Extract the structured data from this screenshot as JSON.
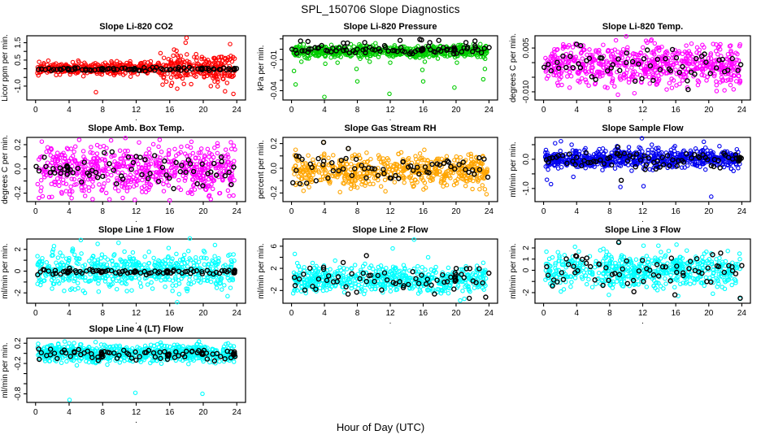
{
  "title": "SPL_150706  Slope Diagnostics",
  "xlabel": "Hour of Day (UTC)",
  "dot_label": ".",
  "x_ticks": [
    0,
    4,
    8,
    12,
    16,
    20,
    24
  ],
  "colors": {
    "axis": "#000000",
    "overlay": "#000000",
    "red": "#FF0000",
    "green": "#00CC00",
    "magenta": "#FF00FF",
    "orange": "#FFA500",
    "blue": "#0000EE",
    "cyan": "#00FFFF"
  },
  "chart_data": [
    {
      "type": "scatter",
      "title": "Slope Li-820 CO2",
      "ylabel": "Licor ppm per min.",
      "point_color": "#FF0000",
      "x_range": [
        0,
        24
      ],
      "y_range": [
        -1.8,
        1.9
      ],
      "y_ticks": [
        {
          "v": -1.0,
          "label": "-1.0"
        },
        {
          "v": -0.5,
          "label": ""
        },
        {
          "v": 0.0,
          "label": ""
        },
        {
          "v": 0.5,
          "label": "0.5"
        },
        {
          "v": 1.0,
          "label": ""
        },
        {
          "v": 1.5,
          "label": "1.5"
        }
      ],
      "gen": {
        "n": 620,
        "mean": 0.03,
        "sd": 0.17,
        "sd2": 2.4,
        "sd2_from": 15,
        "seed": 11
      },
      "outliers": [
        [
          7.2,
          -1.35
        ],
        [
          16.9,
          -1.15
        ],
        [
          18.0,
          1.78
        ],
        [
          17.9,
          1.5
        ],
        [
          20.9,
          -1.0
        ],
        [
          22.6,
          -1.3
        ],
        [
          23.2,
          1.42
        ],
        [
          23.6,
          -1.45
        ],
        [
          14.9,
          0.9
        ]
      ],
      "overlay": {
        "n": 72,
        "mean": -0.02,
        "sd": 0.05,
        "seed": 111,
        "outliers": [],
        "clusters": [
          3.9,
          7.9,
          11.8,
          19.8,
          23.7
        ]
      }
    },
    {
      "type": "scatter",
      "title": "Slope Li-820 Pressure",
      "ylabel": "kPa per min.",
      "point_color": "#00CC00",
      "x_range": [
        0,
        24
      ],
      "y_range": [
        -0.049,
        0.013
      ],
      "y_ticks": [
        {
          "v": -0.04,
          "label": "-0.04"
        },
        {
          "v": -0.03,
          "label": ""
        },
        {
          "v": -0.02,
          "label": ""
        },
        {
          "v": -0.01,
          "label": "-0.01"
        },
        {
          "v": 0.0,
          "label": ""
        },
        {
          "v": 0.01,
          "label": ""
        }
      ],
      "gen": {
        "n": 600,
        "mean": -0.002,
        "sd": 0.0028,
        "seed": 22
      },
      "outliers": [
        [
          0.3,
          -0.021
        ],
        [
          0.5,
          -0.034
        ],
        [
          1.2,
          -0.012
        ],
        [
          4.0,
          -0.046
        ],
        [
          4.1,
          -0.014
        ],
        [
          5.6,
          -0.013
        ],
        [
          7.9,
          -0.019
        ],
        [
          8.0,
          -0.031
        ],
        [
          9.5,
          -0.012
        ],
        [
          11.9,
          -0.043
        ],
        [
          12.0,
          -0.013
        ],
        [
          15.9,
          -0.02
        ],
        [
          16.0,
          -0.031
        ],
        [
          16.2,
          -0.012
        ],
        [
          19.8,
          -0.037
        ],
        [
          20.1,
          -0.013
        ],
        [
          23.3,
          -0.029
        ],
        [
          23.5,
          -0.019
        ]
      ],
      "overlay": {
        "n": 72,
        "mean": -0.0005,
        "sd": 0.0018,
        "seed": 222,
        "outliers": [
          [
            1.1,
            0.008
          ],
          [
            2.0,
            0.0075
          ],
          [
            6.3,
            0.006
          ],
          [
            6.8,
            0.006
          ],
          [
            8.9,
            0.0065
          ],
          [
            13.2,
            0.0085
          ],
          [
            15.6,
            0.0095
          ],
          [
            15.8,
            0.009
          ],
          [
            16.8,
            0.0065
          ],
          [
            17.9,
            0.0085
          ],
          [
            21.2,
            0.0065
          ],
          [
            22.3,
            0.008
          ]
        ],
        "clusters": [
          15.9,
          19.8
        ]
      }
    },
    {
      "type": "scatter",
      "title": "Slope Li-820 Temp.",
      "ylabel": "degrees C per min.",
      "point_color": "#FF00FF",
      "x_range": [
        0,
        24
      ],
      "y_range": [
        -0.0128,
        0.0092
      ],
      "y_ticks": [
        {
          "v": -0.01,
          "label": "-0.010"
        },
        {
          "v": -0.005,
          "label": ""
        },
        {
          "v": 0.0,
          "label": ""
        },
        {
          "v": 0.005,
          "label": "0.005"
        }
      ],
      "gen": {
        "n": 620,
        "mean": -0.0008,
        "sd": 0.0033,
        "seed": 33
      },
      "outliers": [
        [
          10.0,
          0.009
        ],
        [
          12.4,
          0.0075
        ],
        [
          13.0,
          0.0075
        ],
        [
          3.9,
          0.0062
        ],
        [
          4.4,
          0.006
        ],
        [
          20.9,
          0.0062
        ],
        [
          9.0,
          -0.011
        ],
        [
          11.0,
          -0.0105
        ],
        [
          14.9,
          -0.0092
        ],
        [
          21.9,
          -0.0095
        ],
        [
          17.4,
          -0.0085
        ]
      ],
      "overlay": {
        "n": 55,
        "mean": -0.0008,
        "sd": 0.0028,
        "seed": 333,
        "outliers": [
          [
            4.0,
            0.0063
          ],
          [
            4.5,
            0.0058
          ],
          [
            15.6,
            0.0045
          ],
          [
            17.5,
            -0.0092
          ],
          [
            11.9,
            -0.0055
          ]
        ],
        "clusters": []
      }
    },
    {
      "type": "scatter",
      "title": "Slope Amb. Box Temp.",
      "ylabel": "degrees C per min.",
      "point_color": "#FF00FF",
      "x_range": [
        0,
        24
      ],
      "y_range": [
        -0.27,
        0.26
      ],
      "y_ticks": [
        {
          "v": -0.2,
          "label": "-0.2"
        },
        {
          "v": -0.1,
          "label": ""
        },
        {
          "v": 0.0,
          "label": "0.0"
        },
        {
          "v": 0.1,
          "label": ""
        },
        {
          "v": 0.2,
          "label": "0.2"
        }
      ],
      "gen": {
        "n": 620,
        "mean": 0,
        "sd": 0.095,
        "seed": 44
      },
      "outliers": [
        [
          5.2,
          0.24
        ],
        [
          9.0,
          0.235
        ],
        [
          14.8,
          0.24
        ],
        [
          23.3,
          0.22
        ],
        [
          0.4,
          -0.24
        ],
        [
          6.8,
          -0.25
        ],
        [
          10.4,
          -0.24
        ],
        [
          16.0,
          -0.26
        ],
        [
          20.9,
          -0.25
        ],
        [
          23.6,
          -0.22
        ]
      ],
      "overlay": {
        "n": 65,
        "mean": -0.01,
        "sd": 0.07,
        "seed": 444,
        "outliers": [],
        "clusters": [
          3.8
        ]
      }
    },
    {
      "type": "scatter",
      "title": "Slope Gas Stream RH",
      "ylabel": "percent per min.",
      "point_color": "#FFA500",
      "x_range": [
        0,
        24
      ],
      "y_range": [
        -0.27,
        0.25
      ],
      "y_ticks": [
        {
          "v": -0.2,
          "label": "-0.2"
        },
        {
          "v": -0.1,
          "label": ""
        },
        {
          "v": 0.0,
          "label": "0.0"
        },
        {
          "v": 0.1,
          "label": ""
        },
        {
          "v": 0.2,
          "label": "0.2"
        }
      ],
      "gen": {
        "n": 560,
        "mean": -0.02,
        "sd": 0.065,
        "seed": 55
      },
      "outliers": [
        [
          3.9,
          0.21
        ],
        [
          6.9,
          0.16
        ],
        [
          23.7,
          -0.21
        ],
        [
          23.5,
          -0.17
        ],
        [
          0.5,
          0.15
        ]
      ],
      "overlay": {
        "n": 62,
        "mean": -0.01,
        "sd": 0.06,
        "seed": 555,
        "outliers": [
          [
            3.9,
            0.21
          ],
          [
            6.9,
            0.16
          ],
          [
            0.6,
            0.1
          ],
          [
            0.9,
            0.095
          ]
        ],
        "clusters": []
      }
    },
    {
      "type": "scatter",
      "title": "Slope Sample Flow",
      "ylabel": "ml/min per min.",
      "point_color": "#0000EE",
      "x_range": [
        0,
        24
      ],
      "y_range": [
        -1.45,
        0.75
      ],
      "y_ticks": [
        {
          "v": -1.0,
          "label": "-1.0"
        },
        {
          "v": -0.5,
          "label": ""
        },
        {
          "v": 0.0,
          "label": "0.0"
        },
        {
          "v": 0.5,
          "label": ""
        }
      ],
      "gen": {
        "n": 650,
        "mean": 0.02,
        "sd": 0.16,
        "seed": 66
      },
      "outliers": [
        [
          0.4,
          -0.7
        ],
        [
          0.9,
          -0.85
        ],
        [
          1.4,
          0.55
        ],
        [
          2.1,
          0.62
        ],
        [
          3.4,
          0.5
        ],
        [
          3.6,
          -0.6
        ],
        [
          8.9,
          0.45
        ],
        [
          9.3,
          -0.95
        ],
        [
          11.9,
          0.72
        ],
        [
          12.1,
          -0.92
        ],
        [
          13.1,
          0.5
        ],
        [
          15.9,
          0.45
        ],
        [
          19.4,
          0.6
        ],
        [
          20.3,
          -1.28
        ],
        [
          23.0,
          -0.4
        ]
      ],
      "overlay": {
        "n": 68,
        "mean": -0.02,
        "sd": 0.12,
        "seed": 666,
        "outliers": [
          [
            9.0,
            0.42
          ],
          [
            9.4,
            -0.72
          ],
          [
            12.3,
            -0.35
          ],
          [
            13.6,
            -0.33
          ],
          [
            20.6,
            -0.25
          ]
        ],
        "clusters": [
          23.7
        ]
      }
    },
    {
      "type": "scatter",
      "title": "Slope Line 1 Flow",
      "ylabel": "ml/min per min.",
      "point_color": "#00FFFF",
      "x_range": [
        0,
        24
      ],
      "y_range": [
        -2.95,
        2.95
      ],
      "y_ticks": [
        {
          "v": -2,
          "label": "-2"
        },
        {
          "v": -1,
          "label": ""
        },
        {
          "v": 0,
          "label": "0"
        },
        {
          "v": 1,
          "label": ""
        },
        {
          "v": 2,
          "label": "2"
        }
      ],
      "gen": {
        "n": 560,
        "mean": 0,
        "sd": 0.85,
        "seed": 77
      },
      "outliers": [
        [
          5.4,
          2.85
        ],
        [
          7.4,
          2.5
        ],
        [
          9.9,
          2.6
        ],
        [
          18.4,
          3.0
        ],
        [
          16.9,
          -2.85
        ],
        [
          22.9,
          -2.3
        ],
        [
          21.4,
          2.4
        ],
        [
          2.2,
          2.3
        ]
      ],
      "overlay": {
        "n": 70,
        "mean": -0.05,
        "sd": 0.12,
        "seed": 777,
        "outliers": [],
        "clusters": [
          3.9,
          7.9,
          11.8,
          15.7,
          23.7
        ]
      }
    },
    {
      "type": "scatter",
      "title": "Slope Line 2 Flow",
      "ylabel": "ml/min per min.",
      "point_color": "#00FFFF",
      "x_range": [
        0,
        24
      ],
      "y_range": [
        -4.3,
        7.3
      ],
      "y_ticks": [
        {
          "v": -2,
          "label": "-2"
        },
        {
          "v": 0,
          "label": ""
        },
        {
          "v": 2,
          "label": "2"
        },
        {
          "v": 4,
          "label": ""
        },
        {
          "v": 6,
          "label": "6"
        }
      ],
      "gen": {
        "n": 560,
        "mean": 0,
        "sd": 1.15,
        "seed": 88
      },
      "outliers": [
        [
          0.4,
          4.6
        ],
        [
          12.3,
          5.6
        ],
        [
          14.9,
          7.2
        ],
        [
          16.6,
          4.0
        ],
        [
          21.0,
          -3.5
        ],
        [
          20.5,
          -3.8
        ],
        [
          5.3,
          3.4
        ],
        [
          23.3,
          3.0
        ]
      ],
      "overlay": {
        "n": 60,
        "mean": 0.2,
        "sd": 1.2,
        "seed": 888,
        "outliers": [
          [
            9.1,
            4.3
          ],
          [
            3.9,
            2.2
          ],
          [
            23.6,
            -3.2
          ],
          [
            21.6,
            -3.4
          ],
          [
            19.9,
            0.4
          ]
        ],
        "clusters": [
          19.9
        ]
      }
    },
    {
      "type": "scatter",
      "title": "Slope Line 3 Flow",
      "ylabel": "ml/min per min.",
      "point_color": "#00FFFF",
      "x_range": [
        0,
        24
      ],
      "y_range": [
        -2.95,
        2.8
      ],
      "y_ticks": [
        {
          "v": -2,
          "label": "-2"
        },
        {
          "v": -1,
          "label": ""
        },
        {
          "v": 0,
          "label": "0"
        },
        {
          "v": 1,
          "label": "1"
        },
        {
          "v": 2,
          "label": "2"
        }
      ],
      "gen": {
        "n": 560,
        "mean": 0,
        "sd": 0.75,
        "seed": 99
      },
      "outliers": [
        [
          9.1,
          2.55
        ],
        [
          3.8,
          2.1
        ],
        [
          12.1,
          2.2
        ],
        [
          16.1,
          2.3
        ],
        [
          13.9,
          2.2
        ],
        [
          23.8,
          -2.55
        ],
        [
          7.9,
          -2.2
        ],
        [
          16.3,
          -2.3
        ],
        [
          20.5,
          -2.1
        ],
        [
          2.1,
          -1.9
        ]
      ],
      "overlay": {
        "n": 64,
        "mean": 0,
        "sd": 0.75,
        "seed": 999,
        "outliers": [
          [
            9.1,
            2.5
          ],
          [
            3.9,
            1.3
          ],
          [
            4.0,
            1.25
          ],
          [
            23.8,
            -2.5
          ],
          [
            15.9,
            -2.2
          ],
          [
            19.9,
            0.2
          ]
        ],
        "clusters": []
      }
    },
    {
      "type": "scatter",
      "title": "Slope Line 4 (LT) Flow",
      "ylabel": "ml/min per min.",
      "point_color": "#00FFFF",
      "x_range": [
        0,
        24
      ],
      "y_range": [
        -0.97,
        0.3
      ],
      "y_ticks": [
        {
          "v": 0.2,
          "label": "0.2"
        },
        {
          "v": 0.0,
          "label": ""
        },
        {
          "v": -0.2,
          "label": "-0.2"
        },
        {
          "v": -0.4,
          "label": ""
        },
        {
          "v": -0.6,
          "label": ""
        },
        {
          "v": -0.8,
          "label": "-0.8"
        }
      ],
      "gen": {
        "n": 620,
        "mean": 0,
        "sd": 0.09,
        "clamp": [
          -0.27,
          0.27
        ],
        "seed": 101
      },
      "outliers": [
        [
          4.05,
          -0.92
        ],
        [
          11.9,
          -0.78
        ],
        [
          19.9,
          -0.8
        ],
        [
          4.0,
          0.2
        ]
      ],
      "overlay": {
        "n": 68,
        "mean": -0.02,
        "sd": 0.06,
        "seed": 1011,
        "outliers": [],
        "clusters": [
          7.9,
          15.8,
          19.9,
          23.7
        ]
      }
    }
  ]
}
